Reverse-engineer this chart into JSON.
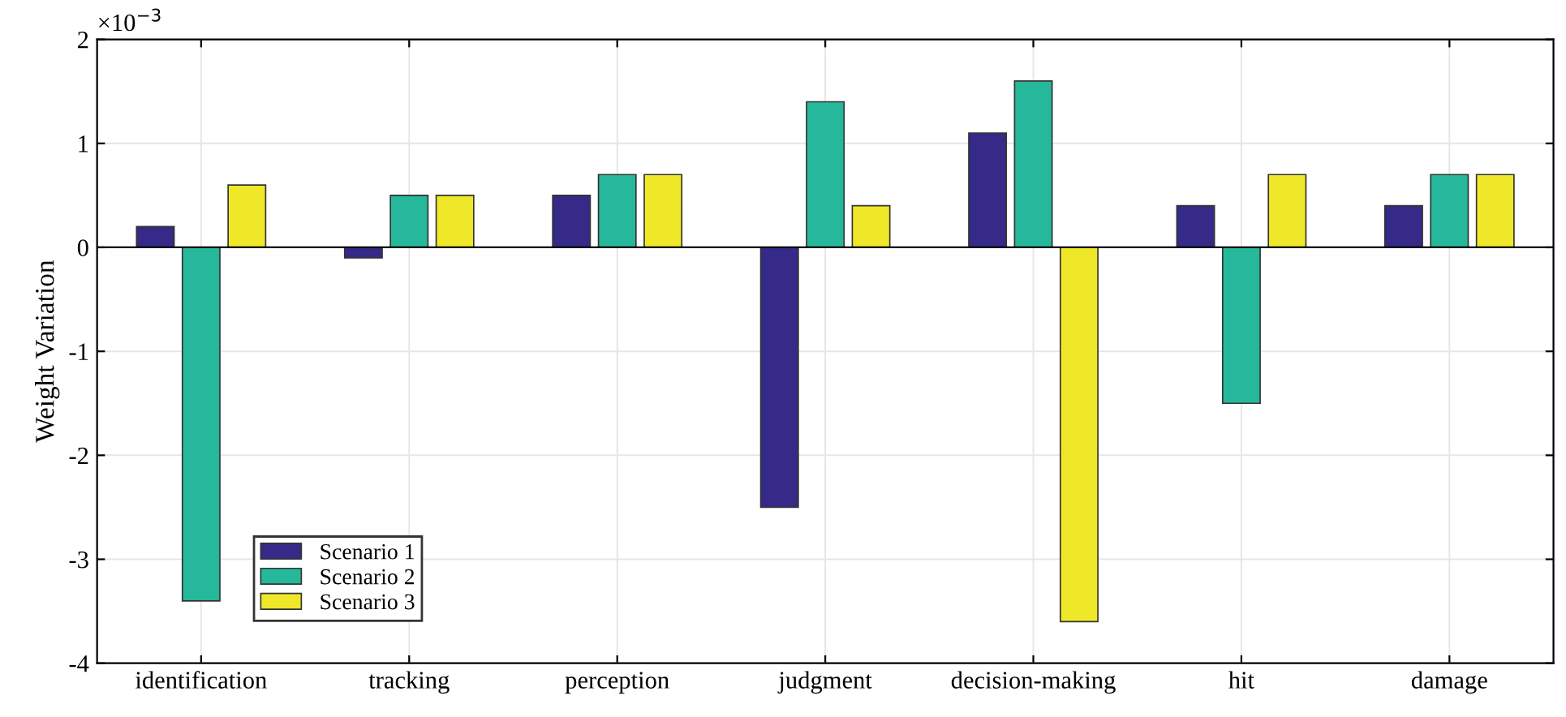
{
  "chart_data": {
    "type": "bar",
    "ylabel": "Weight Variation",
    "categories": [
      "identification",
      "tracking",
      "perception",
      "judgment",
      "decision-making",
      "hit",
      "damage"
    ],
    "series": [
      {
        "name": "Scenario 1",
        "color": "#352a87",
        "values": [
          0.2,
          -0.1,
          0.5,
          -2.5,
          1.1,
          0.4,
          0.4
        ]
      },
      {
        "name": "Scenario 2",
        "color": "#26b89a",
        "values": [
          -3.4,
          0.5,
          0.7,
          1.4,
          1.6,
          -1.5,
          0.7
        ]
      },
      {
        "name": "Scenario 3",
        "color": "#eee828",
        "values": [
          0.6,
          0.5,
          0.7,
          0.4,
          -3.6,
          0.7,
          0.7
        ]
      }
    ],
    "ylim": [
      -4,
      2
    ],
    "yticks": [
      -4,
      -3,
      -2,
      -1,
      0,
      1,
      2
    ],
    "grid": true,
    "legend": "bottom left",
    "ref_lines": [
      {
        "axis": "y",
        "value": 0,
        "color": "#000000"
      }
    ],
    "annotations": [
      "×10$^{−3}$"
    ]
  }
}
